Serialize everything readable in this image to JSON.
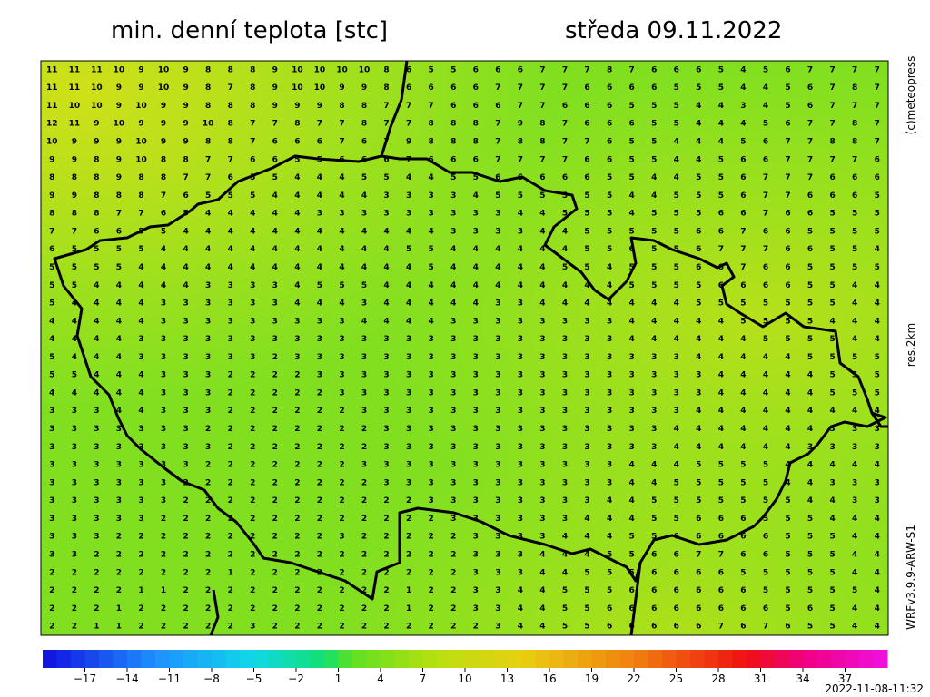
{
  "header": {
    "title": "min. denní teplota [stc]",
    "date": "středa 09.11.2022"
  },
  "side": {
    "copyright": "(c)meteopress",
    "resolution": "res.2km",
    "model": "WRFv3.9.9-ARW-S1"
  },
  "footer": {
    "run": "2022-11-08-11:32"
  },
  "colorbar": {
    "lim": [
      -20,
      40
    ],
    "ticks": [
      {
        "value": -17,
        "label": "−17"
      },
      {
        "value": -14,
        "label": "−14"
      },
      {
        "value": -11,
        "label": "−11"
      },
      {
        "value": -8,
        "label": "−8"
      },
      {
        "value": -5,
        "label": "−5"
      },
      {
        "value": -2,
        "label": "−2"
      },
      1,
      4,
      7,
      10,
      13,
      16,
      19,
      22,
      25,
      28,
      31,
      34,
      37
    ],
    "stops": [
      {
        "value": -20,
        "color": "#1010e0"
      },
      {
        "value": -12,
        "color": "#1e90ff"
      },
      {
        "value": -5,
        "color": "#10d8e8"
      },
      {
        "value": 0,
        "color": "#10e070"
      },
      {
        "value": 2,
        "color": "#60e020"
      },
      {
        "value": 8,
        "color": "#b8e010"
      },
      {
        "value": 14,
        "color": "#e8d010"
      },
      {
        "value": 22,
        "color": "#f08010"
      },
      {
        "value": 30,
        "color": "#f01010"
      },
      {
        "value": 34,
        "color": "#f00080"
      },
      {
        "value": 40,
        "color": "#f010e0"
      }
    ]
  },
  "grid": {
    "values": [
      [
        11,
        11,
        11,
        10,
        9,
        10,
        9,
        8,
        8,
        8,
        9,
        10,
        10,
        10,
        10,
        8,
        6,
        5,
        5,
        6,
        6,
        6,
        7,
        7,
        7,
        8,
        7,
        6,
        6,
        6,
        5,
        4,
        5,
        6,
        7,
        7,
        7,
        7
      ],
      [
        11,
        11,
        10,
        9,
        9,
        10,
        9,
        8,
        7,
        8,
        9,
        10,
        10,
        9,
        9,
        8,
        6,
        6,
        6,
        6,
        7,
        7,
        7,
        7,
        6,
        6,
        6,
        6,
        5,
        5,
        5,
        4,
        4,
        5,
        6,
        7,
        8,
        7
      ],
      [
        11,
        10,
        10,
        9,
        10,
        9,
        9,
        8,
        8,
        8,
        9,
        9,
        9,
        8,
        8,
        7,
        7,
        7,
        6,
        6,
        6,
        7,
        7,
        6,
        6,
        6,
        5,
        5,
        5,
        4,
        4,
        3,
        4,
        5,
        6,
        7,
        7,
        7
      ],
      [
        12,
        11,
        9,
        10,
        9,
        9,
        9,
        10,
        8,
        7,
        7,
        8,
        7,
        7,
        8,
        7,
        7,
        8,
        8,
        8,
        7,
        9,
        8,
        7,
        6,
        6,
        6,
        5,
        5,
        4,
        4,
        4,
        5,
        6,
        7,
        7,
        8,
        7
      ],
      [
        10,
        9,
        9,
        9,
        10,
        9,
        9,
        8,
        8,
        7,
        6,
        6,
        6,
        7,
        6,
        7,
        9,
        8,
        8,
        8,
        7,
        8,
        8,
        7,
        7,
        6,
        5,
        5,
        4,
        4,
        4,
        5,
        6,
        7,
        7,
        8,
        8,
        7
      ],
      [
        9,
        9,
        8,
        9,
        10,
        8,
        8,
        7,
        7,
        6,
        6,
        5,
        5,
        6,
        6,
        6,
        7,
        6,
        6,
        6,
        7,
        7,
        7,
        7,
        6,
        6,
        5,
        5,
        4,
        4,
        5,
        6,
        6,
        7,
        7,
        7,
        7,
        6
      ],
      [
        8,
        8,
        8,
        9,
        8,
        8,
        7,
        7,
        6,
        5,
        5,
        4,
        4,
        4,
        5,
        5,
        4,
        4,
        5,
        5,
        6,
        6,
        6,
        6,
        6,
        5,
        5,
        4,
        4,
        5,
        5,
        6,
        7,
        7,
        7,
        6,
        6,
        6
      ],
      [
        9,
        9,
        8,
        8,
        8,
        7,
        6,
        5,
        5,
        5,
        4,
        4,
        4,
        4,
        4,
        3,
        3,
        3,
        3,
        4,
        5,
        5,
        5,
        5,
        5,
        5,
        4,
        4,
        5,
        5,
        5,
        6,
        7,
        7,
        6,
        6,
        6,
        5
      ],
      [
        8,
        8,
        8,
        7,
        7,
        6,
        5,
        4,
        4,
        4,
        4,
        4,
        3,
        3,
        3,
        3,
        3,
        3,
        3,
        3,
        3,
        4,
        4,
        5,
        5,
        5,
        4,
        5,
        5,
        5,
        6,
        6,
        7,
        6,
        6,
        5,
        5,
        5
      ],
      [
        7,
        7,
        6,
        6,
        5,
        5,
        4,
        4,
        4,
        4,
        4,
        4,
        4,
        4,
        4,
        4,
        4,
        4,
        3,
        3,
        3,
        3,
        4,
        4,
        5,
        5,
        5,
        5,
        5,
        6,
        6,
        7,
        6,
        6,
        5,
        5,
        5,
        5
      ],
      [
        6,
        5,
        5,
        5,
        5,
        4,
        4,
        4,
        4,
        4,
        4,
        4,
        4,
        4,
        4,
        4,
        5,
        5,
        4,
        4,
        4,
        4,
        4,
        4,
        5,
        5,
        6,
        5,
        5,
        6,
        7,
        7,
        7,
        6,
        6,
        5,
        5,
        4
      ],
      [
        5,
        5,
        5,
        5,
        4,
        4,
        4,
        4,
        4,
        4,
        4,
        4,
        4,
        4,
        4,
        4,
        4,
        5,
        4,
        4,
        4,
        4,
        4,
        5,
        5,
        4,
        5,
        5,
        5,
        6,
        6,
        7,
        6,
        6,
        5,
        5,
        5,
        5
      ],
      [
        5,
        5,
        4,
        4,
        4,
        4,
        4,
        3,
        3,
        3,
        3,
        4,
        5,
        5,
        5,
        4,
        4,
        4,
        4,
        4,
        4,
        4,
        4,
        4,
        4,
        4,
        5,
        5,
        5,
        5,
        6,
        6,
        6,
        6,
        5,
        5,
        4,
        4
      ],
      [
        5,
        4,
        4,
        4,
        4,
        3,
        3,
        3,
        3,
        3,
        3,
        4,
        4,
        4,
        3,
        4,
        4,
        4,
        4,
        4,
        3,
        3,
        4,
        4,
        4,
        4,
        4,
        4,
        4,
        5,
        5,
        5,
        5,
        5,
        5,
        5,
        4,
        4
      ],
      [
        4,
        4,
        4,
        4,
        4,
        3,
        3,
        3,
        3,
        3,
        3,
        3,
        3,
        3,
        4,
        4,
        4,
        4,
        3,
        3,
        3,
        3,
        3,
        3,
        3,
        3,
        4,
        4,
        4,
        4,
        4,
        5,
        5,
        5,
        5,
        4,
        4,
        4
      ],
      [
        4,
        4,
        4,
        4,
        3,
        3,
        3,
        3,
        3,
        3,
        3,
        3,
        3,
        3,
        3,
        3,
        3,
        3,
        3,
        3,
        3,
        3,
        3,
        3,
        3,
        3,
        4,
        4,
        4,
        4,
        4,
        4,
        5,
        5,
        5,
        5,
        4,
        4
      ],
      [
        5,
        4,
        4,
        4,
        3,
        3,
        3,
        3,
        3,
        3,
        2,
        3,
        3,
        3,
        3,
        3,
        3,
        3,
        3,
        3,
        3,
        3,
        3,
        3,
        3,
        3,
        3,
        3,
        3,
        4,
        4,
        4,
        4,
        4,
        5,
        5,
        5,
        5
      ],
      [
        5,
        5,
        4,
        4,
        4,
        3,
        3,
        3,
        2,
        2,
        2,
        2,
        3,
        3,
        3,
        3,
        3,
        3,
        3,
        3,
        3,
        3,
        3,
        3,
        3,
        3,
        3,
        3,
        3,
        3,
        4,
        4,
        4,
        4,
        4,
        5,
        5,
        5
      ],
      [
        4,
        4,
        4,
        4,
        4,
        3,
        3,
        3,
        2,
        2,
        2,
        2,
        2,
        3,
        3,
        3,
        3,
        3,
        3,
        3,
        3,
        3,
        3,
        3,
        3,
        3,
        3,
        3,
        3,
        3,
        4,
        4,
        4,
        4,
        4,
        5,
        5,
        5
      ],
      [
        3,
        3,
        3,
        4,
        4,
        3,
        3,
        3,
        2,
        2,
        2,
        2,
        2,
        2,
        3,
        3,
        3,
        3,
        3,
        3,
        3,
        3,
        3,
        3,
        3,
        3,
        3,
        3,
        3,
        4,
        4,
        4,
        4,
        4,
        4,
        4,
        4,
        4
      ],
      [
        3,
        3,
        3,
        3,
        3,
        3,
        3,
        2,
        2,
        2,
        2,
        2,
        2,
        2,
        2,
        3,
        3,
        3,
        3,
        3,
        3,
        3,
        3,
        3,
        3,
        3,
        3,
        3,
        4,
        4,
        4,
        4,
        4,
        4,
        4,
        3,
        3,
        3
      ],
      [
        3,
        3,
        3,
        3,
        3,
        3,
        3,
        3,
        2,
        2,
        2,
        2,
        2,
        2,
        2,
        3,
        3,
        3,
        3,
        3,
        3,
        3,
        3,
        3,
        3,
        3,
        3,
        3,
        4,
        4,
        4,
        4,
        4,
        4,
        3,
        3,
        3,
        3
      ],
      [
        3,
        3,
        3,
        3,
        3,
        3,
        3,
        2,
        2,
        2,
        2,
        2,
        2,
        2,
        3,
        3,
        3,
        3,
        3,
        3,
        3,
        3,
        3,
        3,
        3,
        3,
        4,
        4,
        4,
        5,
        5,
        5,
        5,
        4,
        4,
        4,
        4,
        4
      ],
      [
        3,
        3,
        3,
        3,
        3,
        3,
        2,
        2,
        2,
        2,
        2,
        2,
        2,
        2,
        2,
        3,
        3,
        3,
        3,
        3,
        3,
        3,
        3,
        3,
        3,
        3,
        4,
        4,
        5,
        5,
        5,
        5,
        5,
        4,
        4,
        3,
        3,
        3
      ],
      [
        3,
        3,
        3,
        3,
        3,
        3,
        2,
        2,
        2,
        2,
        2,
        2,
        2,
        2,
        2,
        2,
        2,
        3,
        3,
        3,
        3,
        3,
        3,
        3,
        3,
        4,
        4,
        5,
        5,
        5,
        5,
        5,
        5,
        5,
        4,
        4,
        3,
        3
      ],
      [
        3,
        3,
        3,
        3,
        3,
        2,
        2,
        2,
        2,
        2,
        2,
        2,
        2,
        2,
        2,
        2,
        2,
        2,
        3,
        3,
        3,
        3,
        3,
        3,
        4,
        4,
        4,
        5,
        5,
        6,
        6,
        6,
        5,
        5,
        5,
        4,
        4,
        4
      ],
      [
        3,
        3,
        3,
        2,
        2,
        2,
        2,
        2,
        2,
        2,
        2,
        2,
        2,
        3,
        2,
        2,
        2,
        2,
        2,
        3,
        3,
        3,
        3,
        4,
        4,
        4,
        5,
        5,
        6,
        6,
        6,
        6,
        6,
        5,
        5,
        5,
        4,
        4
      ],
      [
        3,
        3,
        2,
        2,
        2,
        2,
        2,
        2,
        2,
        2,
        2,
        2,
        2,
        2,
        2,
        2,
        2,
        2,
        2,
        3,
        3,
        3,
        4,
        4,
        4,
        5,
        5,
        6,
        6,
        7,
        7,
        6,
        6,
        5,
        5,
        5,
        4,
        4
      ],
      [
        2,
        2,
        2,
        2,
        2,
        2,
        2,
        2,
        1,
        2,
        2,
        2,
        2,
        2,
        2,
        2,
        2,
        2,
        2,
        3,
        3,
        3,
        4,
        4,
        5,
        5,
        5,
        6,
        6,
        6,
        6,
        5,
        5,
        5,
        5,
        5,
        4,
        4
      ],
      [
        2,
        2,
        2,
        2,
        1,
        1,
        2,
        2,
        2,
        2,
        2,
        2,
        2,
        2,
        2,
        2,
        1,
        2,
        2,
        3,
        3,
        4,
        4,
        5,
        5,
        5,
        6,
        6,
        6,
        6,
        6,
        6,
        5,
        5,
        5,
        5,
        5,
        4
      ],
      [
        2,
        2,
        2,
        1,
        2,
        2,
        2,
        2,
        2,
        2,
        2,
        2,
        2,
        2,
        2,
        2,
        1,
        2,
        2,
        3,
        3,
        4,
        4,
        5,
        5,
        6,
        6,
        6,
        6,
        6,
        6,
        6,
        6,
        5,
        6,
        5,
        4,
        4
      ],
      [
        2,
        2,
        1,
        1,
        2,
        2,
        2,
        2,
        2,
        3,
        2,
        2,
        2,
        2,
        2,
        2,
        2,
        2,
        2,
        2,
        3,
        4,
        4,
        5,
        5,
        6,
        6,
        6,
        6,
        6,
        7,
        6,
        7,
        6,
        5,
        5,
        4,
        4
      ]
    ]
  }
}
